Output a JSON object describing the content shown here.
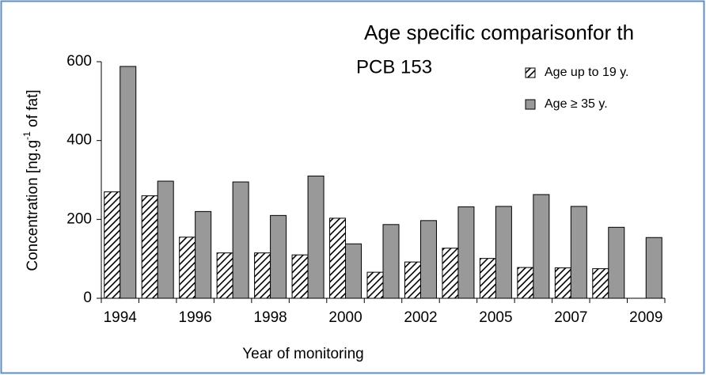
{
  "chart_data": {
    "type": "bar",
    "title": "Age specific comparisonfor th",
    "subtitle": "PCB 153",
    "ylabel": {
      "text": "Concentration [ng.g",
      "superscript": "-1",
      "suffix": " of fat]"
    },
    "xlabel": "Year of monitoring",
    "categories": [
      "1994",
      null,
      "1996",
      null,
      "1998",
      null,
      "2000",
      null,
      "2002",
      null,
      "2005",
      null,
      "2007",
      null,
      "2009"
    ],
    "series": [
      {
        "name": "Age up to 19 y.",
        "color": "#000000",
        "hatch": true,
        "values": [
          270,
          260,
          155,
          115,
          115,
          110,
          203,
          66,
          92,
          127,
          101,
          78,
          77,
          75,
          null
        ]
      },
      {
        "name": "Age ≥ 35 y.",
        "color": "#999999",
        "hatch": false,
        "values": [
          588,
          297,
          220,
          295,
          210,
          310,
          138,
          187,
          197,
          232,
          233,
          263,
          233,
          180,
          154
        ]
      }
    ],
    "ylim": [
      0,
      600
    ],
    "yticks": [
      0,
      200,
      400,
      600
    ],
    "grid": false,
    "legend": "top-right"
  }
}
